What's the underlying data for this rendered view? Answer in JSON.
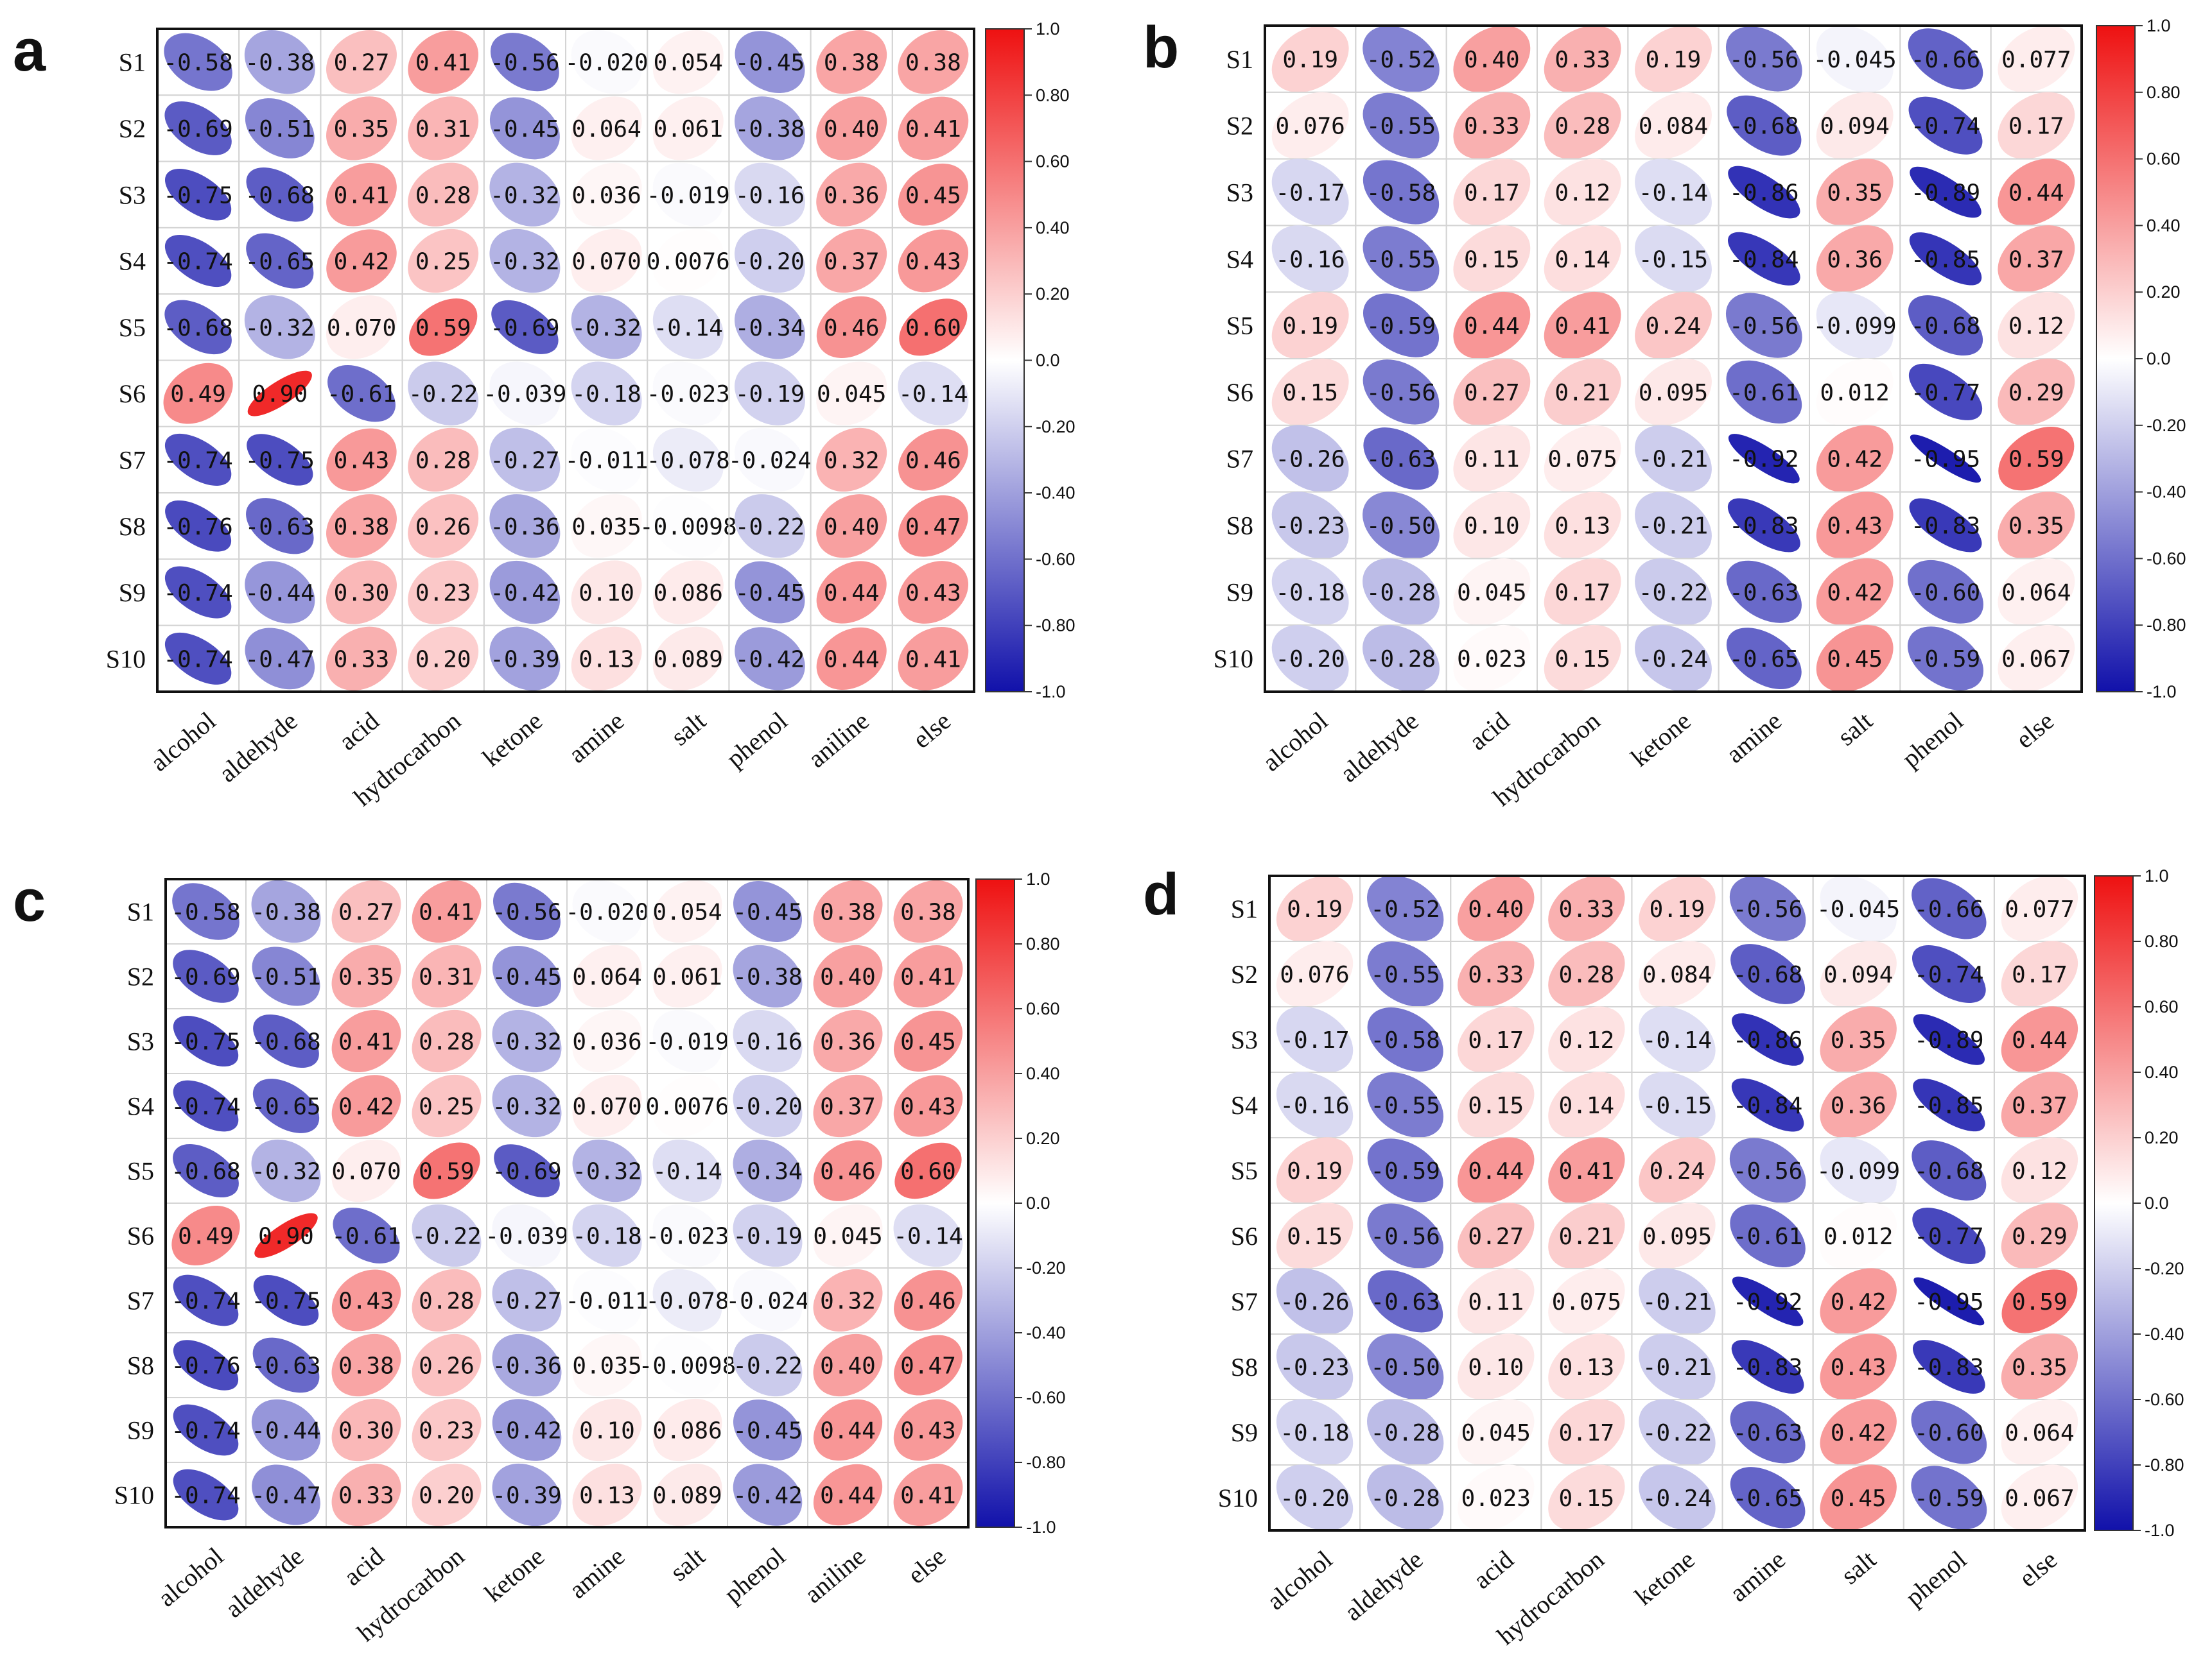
{
  "chart_data": [
    {
      "type": "heatmap",
      "panel_label": "a",
      "rows": [
        "S1",
        "S2",
        "S3",
        "S4",
        "S5",
        "S6",
        "S7",
        "S8",
        "S9",
        "S10"
      ],
      "columns": [
        "alcohol",
        "aldehyde",
        "acid",
        "hydrocarbon",
        "ketone",
        "amine",
        "salt",
        "phenol",
        "aniline",
        "else"
      ],
      "value_labels": [
        [
          "-0.58",
          "-0.38",
          "0.27",
          "0.41",
          "-0.56",
          "-0.020",
          "0.054",
          "-0.45",
          "0.38",
          "0.38"
        ],
        [
          "-0.69",
          "-0.51",
          "0.35",
          "0.31",
          "-0.45",
          "0.064",
          "0.061",
          "-0.38",
          "0.40",
          "0.41"
        ],
        [
          "-0.75",
          "-0.68",
          "0.41",
          "0.28",
          "-0.32",
          "0.036",
          "-0.019",
          "-0.16",
          "0.36",
          "0.45"
        ],
        [
          "-0.74",
          "-0.65",
          "0.42",
          "0.25",
          "-0.32",
          "0.070",
          "0.0076",
          "-0.20",
          "0.37",
          "0.43"
        ],
        [
          "-0.68",
          "-0.32",
          "0.070",
          "0.59",
          "-0.69",
          "-0.32",
          "-0.14",
          "-0.34",
          "0.46",
          "0.60"
        ],
        [
          "0.49",
          "0.90",
          "-0.61",
          "-0.22",
          "-0.039",
          "-0.18",
          "-0.023",
          "-0.19",
          "0.045",
          "-0.14"
        ],
        [
          "-0.74",
          "-0.75",
          "0.43",
          "0.28",
          "-0.27",
          "-0.011",
          "-0.078",
          "-0.024",
          "0.32",
          "0.46"
        ],
        [
          "-0.76",
          "-0.63",
          "0.38",
          "0.26",
          "-0.36",
          "0.035",
          "-0.0098",
          "-0.22",
          "0.40",
          "0.47"
        ],
        [
          "-0.74",
          "-0.44",
          "0.30",
          "0.23",
          "-0.42",
          "0.10",
          "0.086",
          "-0.45",
          "0.44",
          "0.43"
        ],
        [
          "-0.74",
          "-0.47",
          "0.33",
          "0.20",
          "-0.39",
          "0.13",
          "0.089",
          "-0.42",
          "0.44",
          "0.41"
        ]
      ],
      "colorbar_ticks": [
        "1.0",
        "0.80",
        "0.60",
        "0.40",
        "0.20",
        "0.0",
        "-0.20",
        "-0.40",
        "-0.60",
        "-0.80",
        "-1.0"
      ]
    },
    {
      "type": "heatmap",
      "panel_label": "b",
      "rows": [
        "S1",
        "S2",
        "S3",
        "S4",
        "S5",
        "S6",
        "S7",
        "S8",
        "S9",
        "S10"
      ],
      "columns": [
        "alcohol",
        "aldehyde",
        "acid",
        "hydrocarbon",
        "ketone",
        "amine",
        "salt",
        "phenol",
        "else"
      ],
      "value_labels": [
        [
          "0.19",
          "-0.52",
          "0.40",
          "0.33",
          "0.19",
          "-0.56",
          "-0.045",
          "-0.66",
          "0.077"
        ],
        [
          "0.076",
          "-0.55",
          "0.33",
          "0.28",
          "0.084",
          "-0.68",
          "0.094",
          "-0.74",
          "0.17"
        ],
        [
          "-0.17",
          "-0.58",
          "0.17",
          "0.12",
          "-0.14",
          "-0.86",
          "0.35",
          "-0.89",
          "0.44"
        ],
        [
          "-0.16",
          "-0.55",
          "0.15",
          "0.14",
          "-0.15",
          "-0.84",
          "0.36",
          "-0.85",
          "0.37"
        ],
        [
          "0.19",
          "-0.59",
          "0.44",
          "0.41",
          "0.24",
          "-0.56",
          "-0.099",
          "-0.68",
          "0.12"
        ],
        [
          "0.15",
          "-0.56",
          "0.27",
          "0.21",
          "0.095",
          "-0.61",
          "0.012",
          "-0.77",
          "0.29"
        ],
        [
          "-0.26",
          "-0.63",
          "0.11",
          "0.075",
          "-0.21",
          "-0.92",
          "0.42",
          "-0.95",
          "0.59"
        ],
        [
          "-0.23",
          "-0.50",
          "0.10",
          "0.13",
          "-0.21",
          "-0.83",
          "0.43",
          "-0.83",
          "0.35"
        ],
        [
          "-0.18",
          "-0.28",
          "0.045",
          "0.17",
          "-0.22",
          "-0.63",
          "0.42",
          "-0.60",
          "0.064"
        ],
        [
          "-0.20",
          "-0.28",
          "0.023",
          "0.15",
          "-0.24",
          "-0.65",
          "0.45",
          "-0.59",
          "0.067"
        ]
      ],
      "colorbar_ticks": [
        "1.0",
        "0.80",
        "0.60",
        "0.40",
        "0.20",
        "0.0",
        "-0.20",
        "-0.40",
        "-0.60",
        "-0.80",
        "-1.0"
      ]
    },
    {
      "type": "heatmap",
      "panel_label": "c",
      "rows": [
        "S1",
        "S2",
        "S3",
        "S4",
        "S5",
        "S6",
        "S7",
        "S8",
        "S9",
        "S10"
      ],
      "columns": [
        "alcohol",
        "aldehyde",
        "acid",
        "hydrocarbon",
        "ketone",
        "amine",
        "salt",
        "phenol",
        "aniline",
        "else"
      ],
      "value_labels": [
        [
          "-0.58",
          "-0.38",
          "0.27",
          "0.41",
          "-0.56",
          "-0.020",
          "0.054",
          "-0.45",
          "0.38",
          "0.38"
        ],
        [
          "-0.69",
          "-0.51",
          "0.35",
          "0.31",
          "-0.45",
          "0.064",
          "0.061",
          "-0.38",
          "0.40",
          "0.41"
        ],
        [
          "-0.75",
          "-0.68",
          "0.41",
          "0.28",
          "-0.32",
          "0.036",
          "-0.019",
          "-0.16",
          "0.36",
          "0.45"
        ],
        [
          "-0.74",
          "-0.65",
          "0.42",
          "0.25",
          "-0.32",
          "0.070",
          "0.0076",
          "-0.20",
          "0.37",
          "0.43"
        ],
        [
          "-0.68",
          "-0.32",
          "0.070",
          "0.59",
          "-0.69",
          "-0.32",
          "-0.14",
          "-0.34",
          "0.46",
          "0.60"
        ],
        [
          "0.49",
          "0.90",
          "-0.61",
          "-0.22",
          "-0.039",
          "-0.18",
          "-0.023",
          "-0.19",
          "0.045",
          "-0.14"
        ],
        [
          "-0.74",
          "-0.75",
          "0.43",
          "0.28",
          "-0.27",
          "-0.011",
          "-0.078",
          "-0.024",
          "0.32",
          "0.46"
        ],
        [
          "-0.76",
          "-0.63",
          "0.38",
          "0.26",
          "-0.36",
          "0.035",
          "-0.0098",
          "-0.22",
          "0.40",
          "0.47"
        ],
        [
          "-0.74",
          "-0.44",
          "0.30",
          "0.23",
          "-0.42",
          "0.10",
          "0.086",
          "-0.45",
          "0.44",
          "0.43"
        ],
        [
          "-0.74",
          "-0.47",
          "0.33",
          "0.20",
          "-0.39",
          "0.13",
          "0.089",
          "-0.42",
          "0.44",
          "0.41"
        ]
      ],
      "colorbar_ticks": [
        "1.0",
        "0.80",
        "0.60",
        "0.40",
        "0.20",
        "0.0",
        "-0.20",
        "-0.40",
        "-0.60",
        "-0.80",
        "-1.0"
      ]
    },
    {
      "type": "heatmap",
      "panel_label": "d",
      "rows": [
        "S1",
        "S2",
        "S3",
        "S4",
        "S5",
        "S6",
        "S7",
        "S8",
        "S9",
        "S10"
      ],
      "columns": [
        "alcohol",
        "aldehyde",
        "acid",
        "hydrocarbon",
        "ketone",
        "amine",
        "salt",
        "phenol",
        "else"
      ],
      "value_labels": [
        [
          "0.19",
          "-0.52",
          "0.40",
          "0.33",
          "0.19",
          "-0.56",
          "-0.045",
          "-0.66",
          "0.077"
        ],
        [
          "0.076",
          "-0.55",
          "0.33",
          "0.28",
          "0.084",
          "-0.68",
          "0.094",
          "-0.74",
          "0.17"
        ],
        [
          "-0.17",
          "-0.58",
          "0.17",
          "0.12",
          "-0.14",
          "-0.86",
          "0.35",
          "-0.89",
          "0.44"
        ],
        [
          "-0.16",
          "-0.55",
          "0.15",
          "0.14",
          "-0.15",
          "-0.84",
          "0.36",
          "-0.85",
          "0.37"
        ],
        [
          "0.19",
          "-0.59",
          "0.44",
          "0.41",
          "0.24",
          "-0.56",
          "-0.099",
          "-0.68",
          "0.12"
        ],
        [
          "0.15",
          "-0.56",
          "0.27",
          "0.21",
          "0.095",
          "-0.61",
          "0.012",
          "-0.77",
          "0.29"
        ],
        [
          "-0.26",
          "-0.63",
          "0.11",
          "0.075",
          "-0.21",
          "-0.92",
          "0.42",
          "-0.95",
          "0.59"
        ],
        [
          "-0.23",
          "-0.50",
          "0.10",
          "0.13",
          "-0.21",
          "-0.83",
          "0.43",
          "-0.83",
          "0.35"
        ],
        [
          "-0.18",
          "-0.28",
          "0.045",
          "0.17",
          "-0.22",
          "-0.63",
          "0.42",
          "-0.60",
          "0.064"
        ],
        [
          "-0.20",
          "-0.28",
          "0.023",
          "0.15",
          "-0.24",
          "-0.65",
          "0.45",
          "-0.59",
          "0.067"
        ]
      ],
      "colorbar_ticks": [
        "1.0",
        "0.80",
        "0.60",
        "0.40",
        "0.20",
        "0.0",
        "-0.20",
        "-0.40",
        "-0.60",
        "-0.80",
        "-1.0"
      ]
    }
  ],
  "colors": {
    "positive": "#ee1111",
    "neutral": "#ffffff",
    "negative": "#1111aa",
    "cell_grid": "#d4d4d4",
    "text": "#111111"
  }
}
